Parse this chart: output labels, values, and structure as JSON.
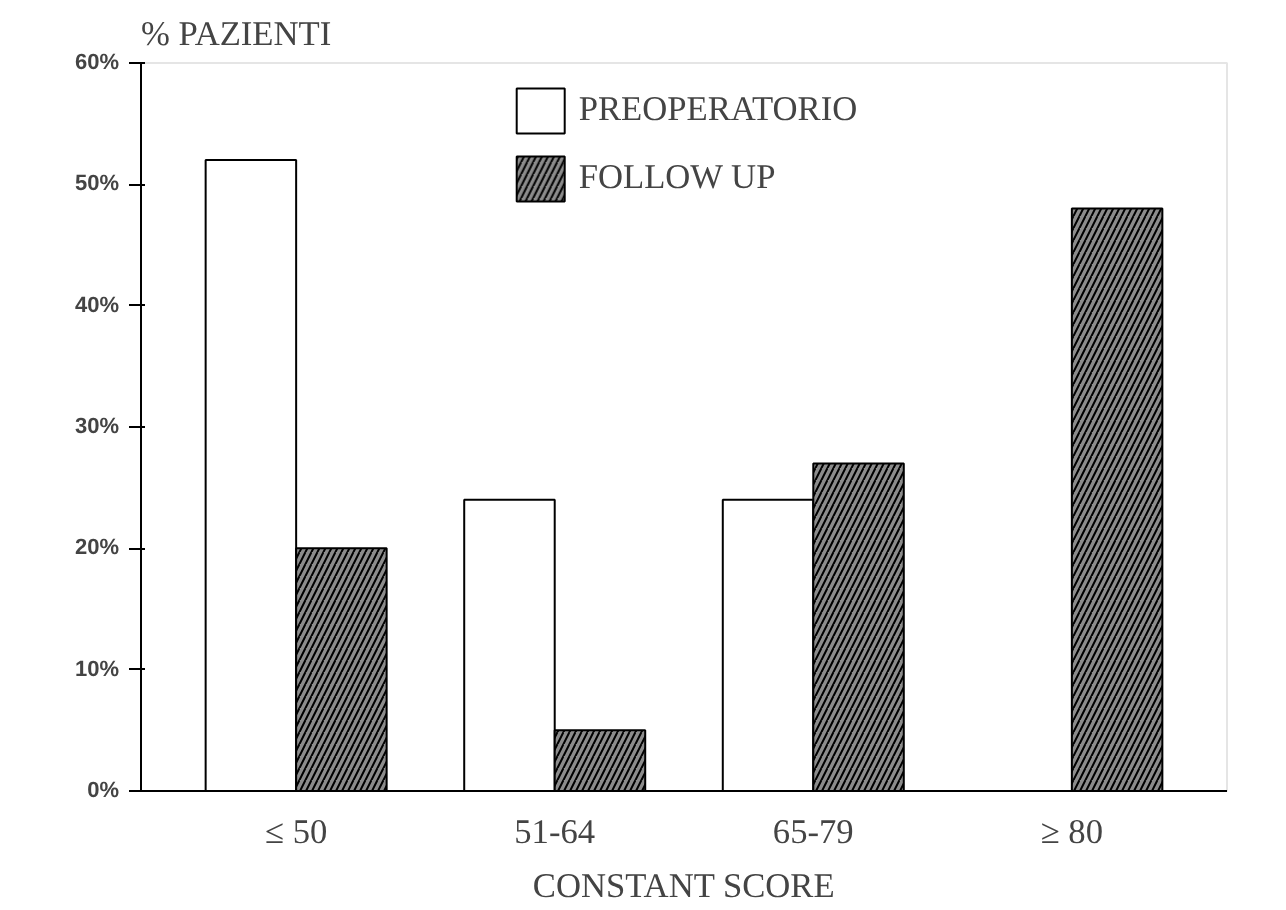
{
  "chart_data": {
    "type": "bar",
    "ylabel": "% PAZIENTI",
    "xlabel": "CONSTANT SCORE",
    "categories": [
      "≤ 50",
      "51-64",
      "65-79",
      "≥ 80"
    ],
    "series": [
      {
        "name": "PREOPERATORIO",
        "color": "#ffffff",
        "values": [
          52,
          24,
          24,
          null
        ]
      },
      {
        "name": "FOLLOW UP",
        "color": "#8c8c8c",
        "values": [
          20,
          5,
          27,
          48
        ]
      }
    ],
    "ylim": [
      0,
      60
    ],
    "yticks": [
      {
        "value": 0,
        "label": "0%"
      },
      {
        "value": 10,
        "label": "10%"
      },
      {
        "value": 20,
        "label": "20%"
      },
      {
        "value": 30,
        "label": "30%"
      },
      {
        "value": 40,
        "label": "40%"
      },
      {
        "value": 50,
        "label": "50%"
      },
      {
        "value": 60,
        "label": "60%"
      }
    ],
    "legend": "top",
    "grid": false
  }
}
